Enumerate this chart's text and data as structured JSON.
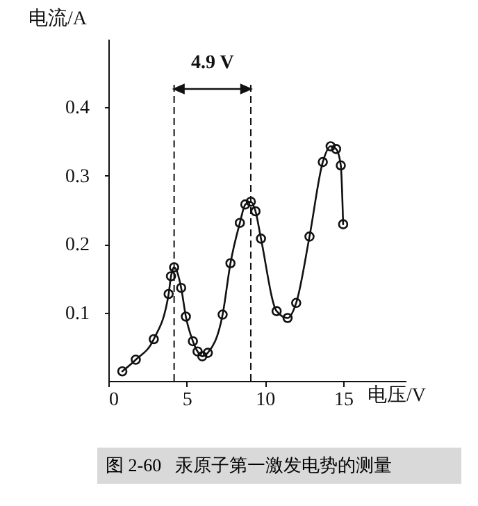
{
  "chart_data": {
    "type": "line",
    "xlabel": "电压/V",
    "ylabel": "电流/A",
    "x": [
      0.89,
      1.75,
      2.9,
      3.85,
      4.0,
      4.2,
      4.65,
      4.95,
      5.4,
      5.7,
      6.0,
      6.35,
      7.3,
      7.8,
      8.4,
      8.75,
      9.1,
      9.4,
      9.75,
      10.75,
      11.45,
      12.0,
      12.85,
      13.7,
      14.2,
      14.55,
      14.85,
      15.0
    ],
    "series": [
      {
        "color": "#111111",
        "values": [
          0.014,
          0.031,
          0.061,
          0.127,
          0.153,
          0.166,
          0.136,
          0.094,
          0.058,
          0.043,
          0.036,
          0.041,
          0.097,
          0.172,
          0.231,
          0.258,
          0.262,
          0.248,
          0.208,
          0.102,
          0.092,
          0.114,
          0.211,
          0.32,
          0.343,
          0.339,
          0.315,
          0.229
        ]
      }
    ],
    "xlim": [
      0,
      19
    ],
    "ylim": [
      0,
      0.5
    ],
    "xticks": [
      0,
      5,
      10,
      15
    ],
    "yticks": [
      0.1,
      0.2,
      0.3,
      0.4
    ],
    "ref_lines": [
      {
        "axis": "x",
        "value": 4.2,
        "line_style": "dashed"
      },
      {
        "axis": "x",
        "value": 9.1,
        "line_style": "dashed"
      }
    ],
    "annotations": [
      "4.9 V",
      "图 2-60   汞原子第一激发电势的测量"
    ],
    "marker": "circle",
    "line_style": "solid",
    "grid": false
  }
}
